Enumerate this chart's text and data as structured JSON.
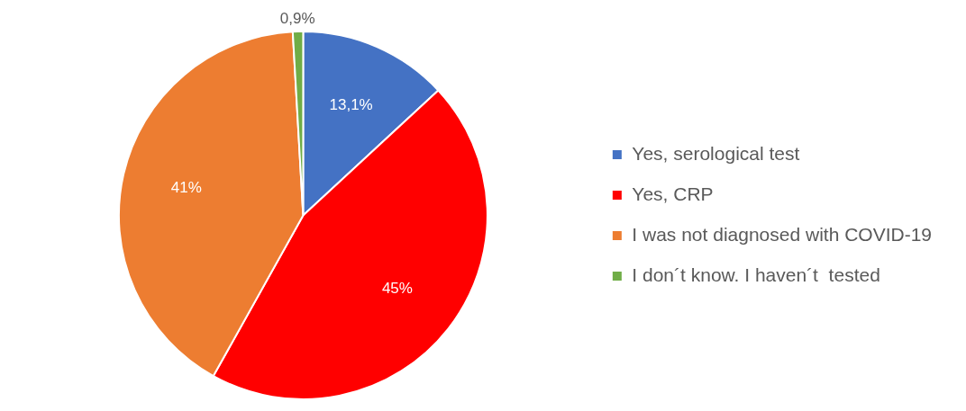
{
  "chart_data": {
    "type": "pie",
    "categories": [
      "Yes, serological test",
      "Yes, CRP",
      "I was not diagnosed with COVID-19",
      "I don´t know. I haven´t  tested"
    ],
    "values": [
      13.1,
      45,
      41,
      0.9
    ],
    "value_labels": [
      "13,1%",
      "45%",
      "41%",
      "0,9%"
    ],
    "colors": [
      "#4472c4",
      "#ff0000",
      "#ed7d31",
      "#70ad47"
    ],
    "legend": "right"
  }
}
